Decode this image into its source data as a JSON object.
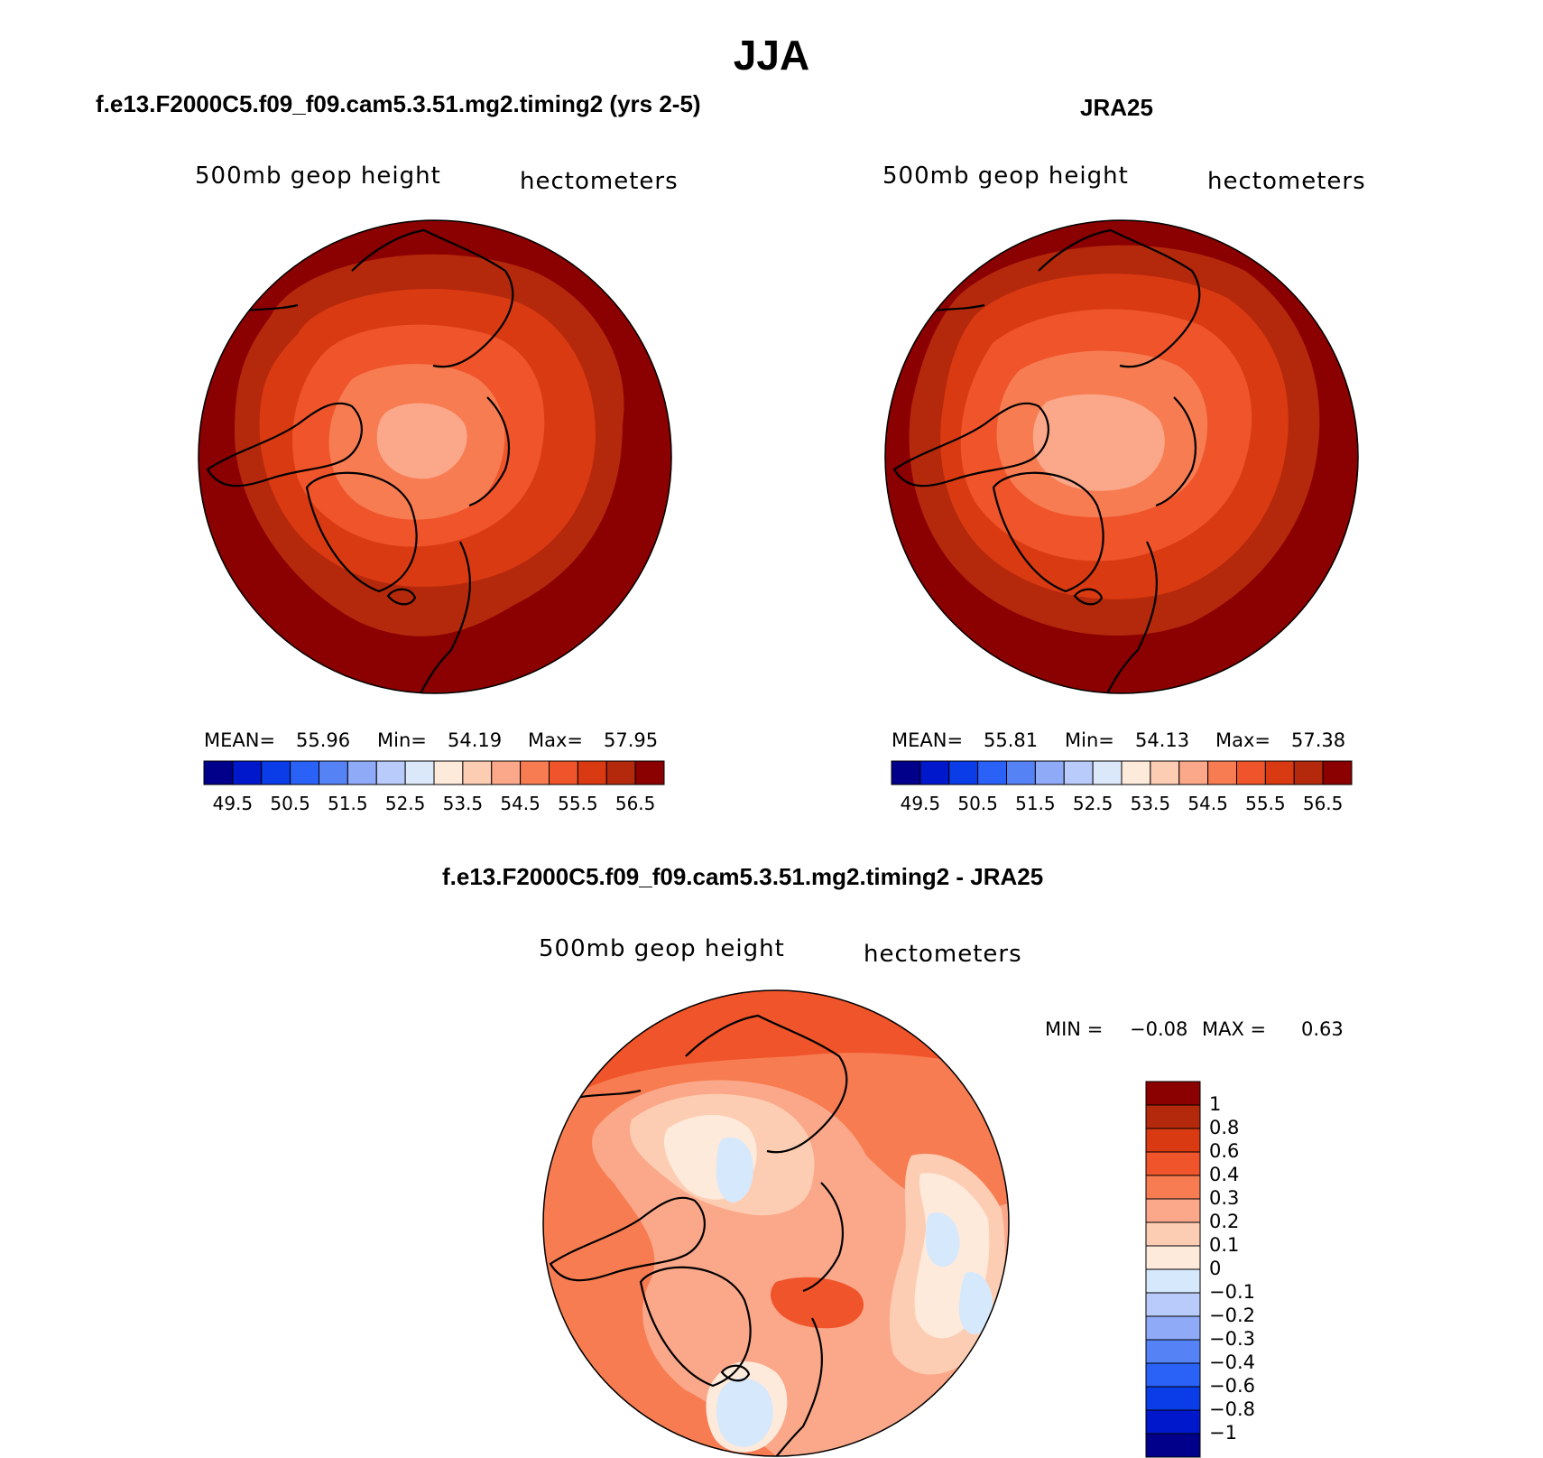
{
  "title": "JJA",
  "chart_data": [
    {
      "type": "heatmap",
      "projection": "north polar stereographic",
      "title": "f.e13.F2000C5.f09_f09.cam5.3.51.mg2.timing2 (yrs 2-5)",
      "variable": "500mb geop height",
      "units": "hectometers",
      "stats": {
        "mean_label": "MEAN=",
        "mean": "55.96",
        "min_label": "Min=",
        "min": "54.19",
        "max_label": "Max=",
        "max": "57.95"
      },
      "colorbar_ticks": [
        "49.5",
        "50.5",
        "51.5",
        "52.5",
        "53.5",
        "54.5",
        "55.5",
        "56.5"
      ]
    },
    {
      "type": "heatmap",
      "projection": "north polar stereographic",
      "title": "JRA25",
      "variable": "500mb geop height",
      "units": "hectometers",
      "stats": {
        "mean_label": "MEAN=",
        "mean": "55.81",
        "min_label": "Min=",
        "min": "54.13",
        "max_label": "Max=",
        "max": "57.38"
      },
      "colorbar_ticks": [
        "49.5",
        "50.5",
        "51.5",
        "52.5",
        "53.5",
        "54.5",
        "55.5",
        "56.5"
      ]
    },
    {
      "type": "heatmap",
      "projection": "north polar stereographic",
      "title": "f.e13.F2000C5.f09_f09.cam5.3.51.mg2.timing2 - JRA25",
      "variable": "500mb geop height",
      "units": "hectometers",
      "stats": {
        "min_label": "MIN =",
        "min": "−0.08",
        "max_label": "MAX =",
        "max": "0.63"
      },
      "colorbar_ticks": [
        "1",
        "0.8",
        "0.6",
        "0.4",
        "0.3",
        "0.2",
        "0.1",
        "0",
        "−0.1",
        "−0.2",
        "−0.3",
        "−0.4",
        "−0.6",
        "−0.8",
        "−1"
      ]
    }
  ],
  "colors": {
    "abs_scale": [
      "#00008b",
      "#0018cc",
      "#0a3de8",
      "#2a62f8",
      "#5582f5",
      "#8faaf7",
      "#b9cbfa",
      "#dbe8fa",
      "#feeadb",
      "#fdcdb3",
      "#fba88a",
      "#f77c52",
      "#f0542a",
      "#d93a12",
      "#b4280c",
      "#8b0000"
    ],
    "diff_scale": [
      "#8b0000",
      "#b4280c",
      "#d93a12",
      "#f0542a",
      "#f77c52",
      "#fba88a",
      "#fdcdb3",
      "#feeadb",
      "#d6e8fb",
      "#b9cbfa",
      "#8faaf7",
      "#5582f5",
      "#2a62f8",
      "#0a3de8",
      "#0018cc",
      "#00008b"
    ]
  }
}
